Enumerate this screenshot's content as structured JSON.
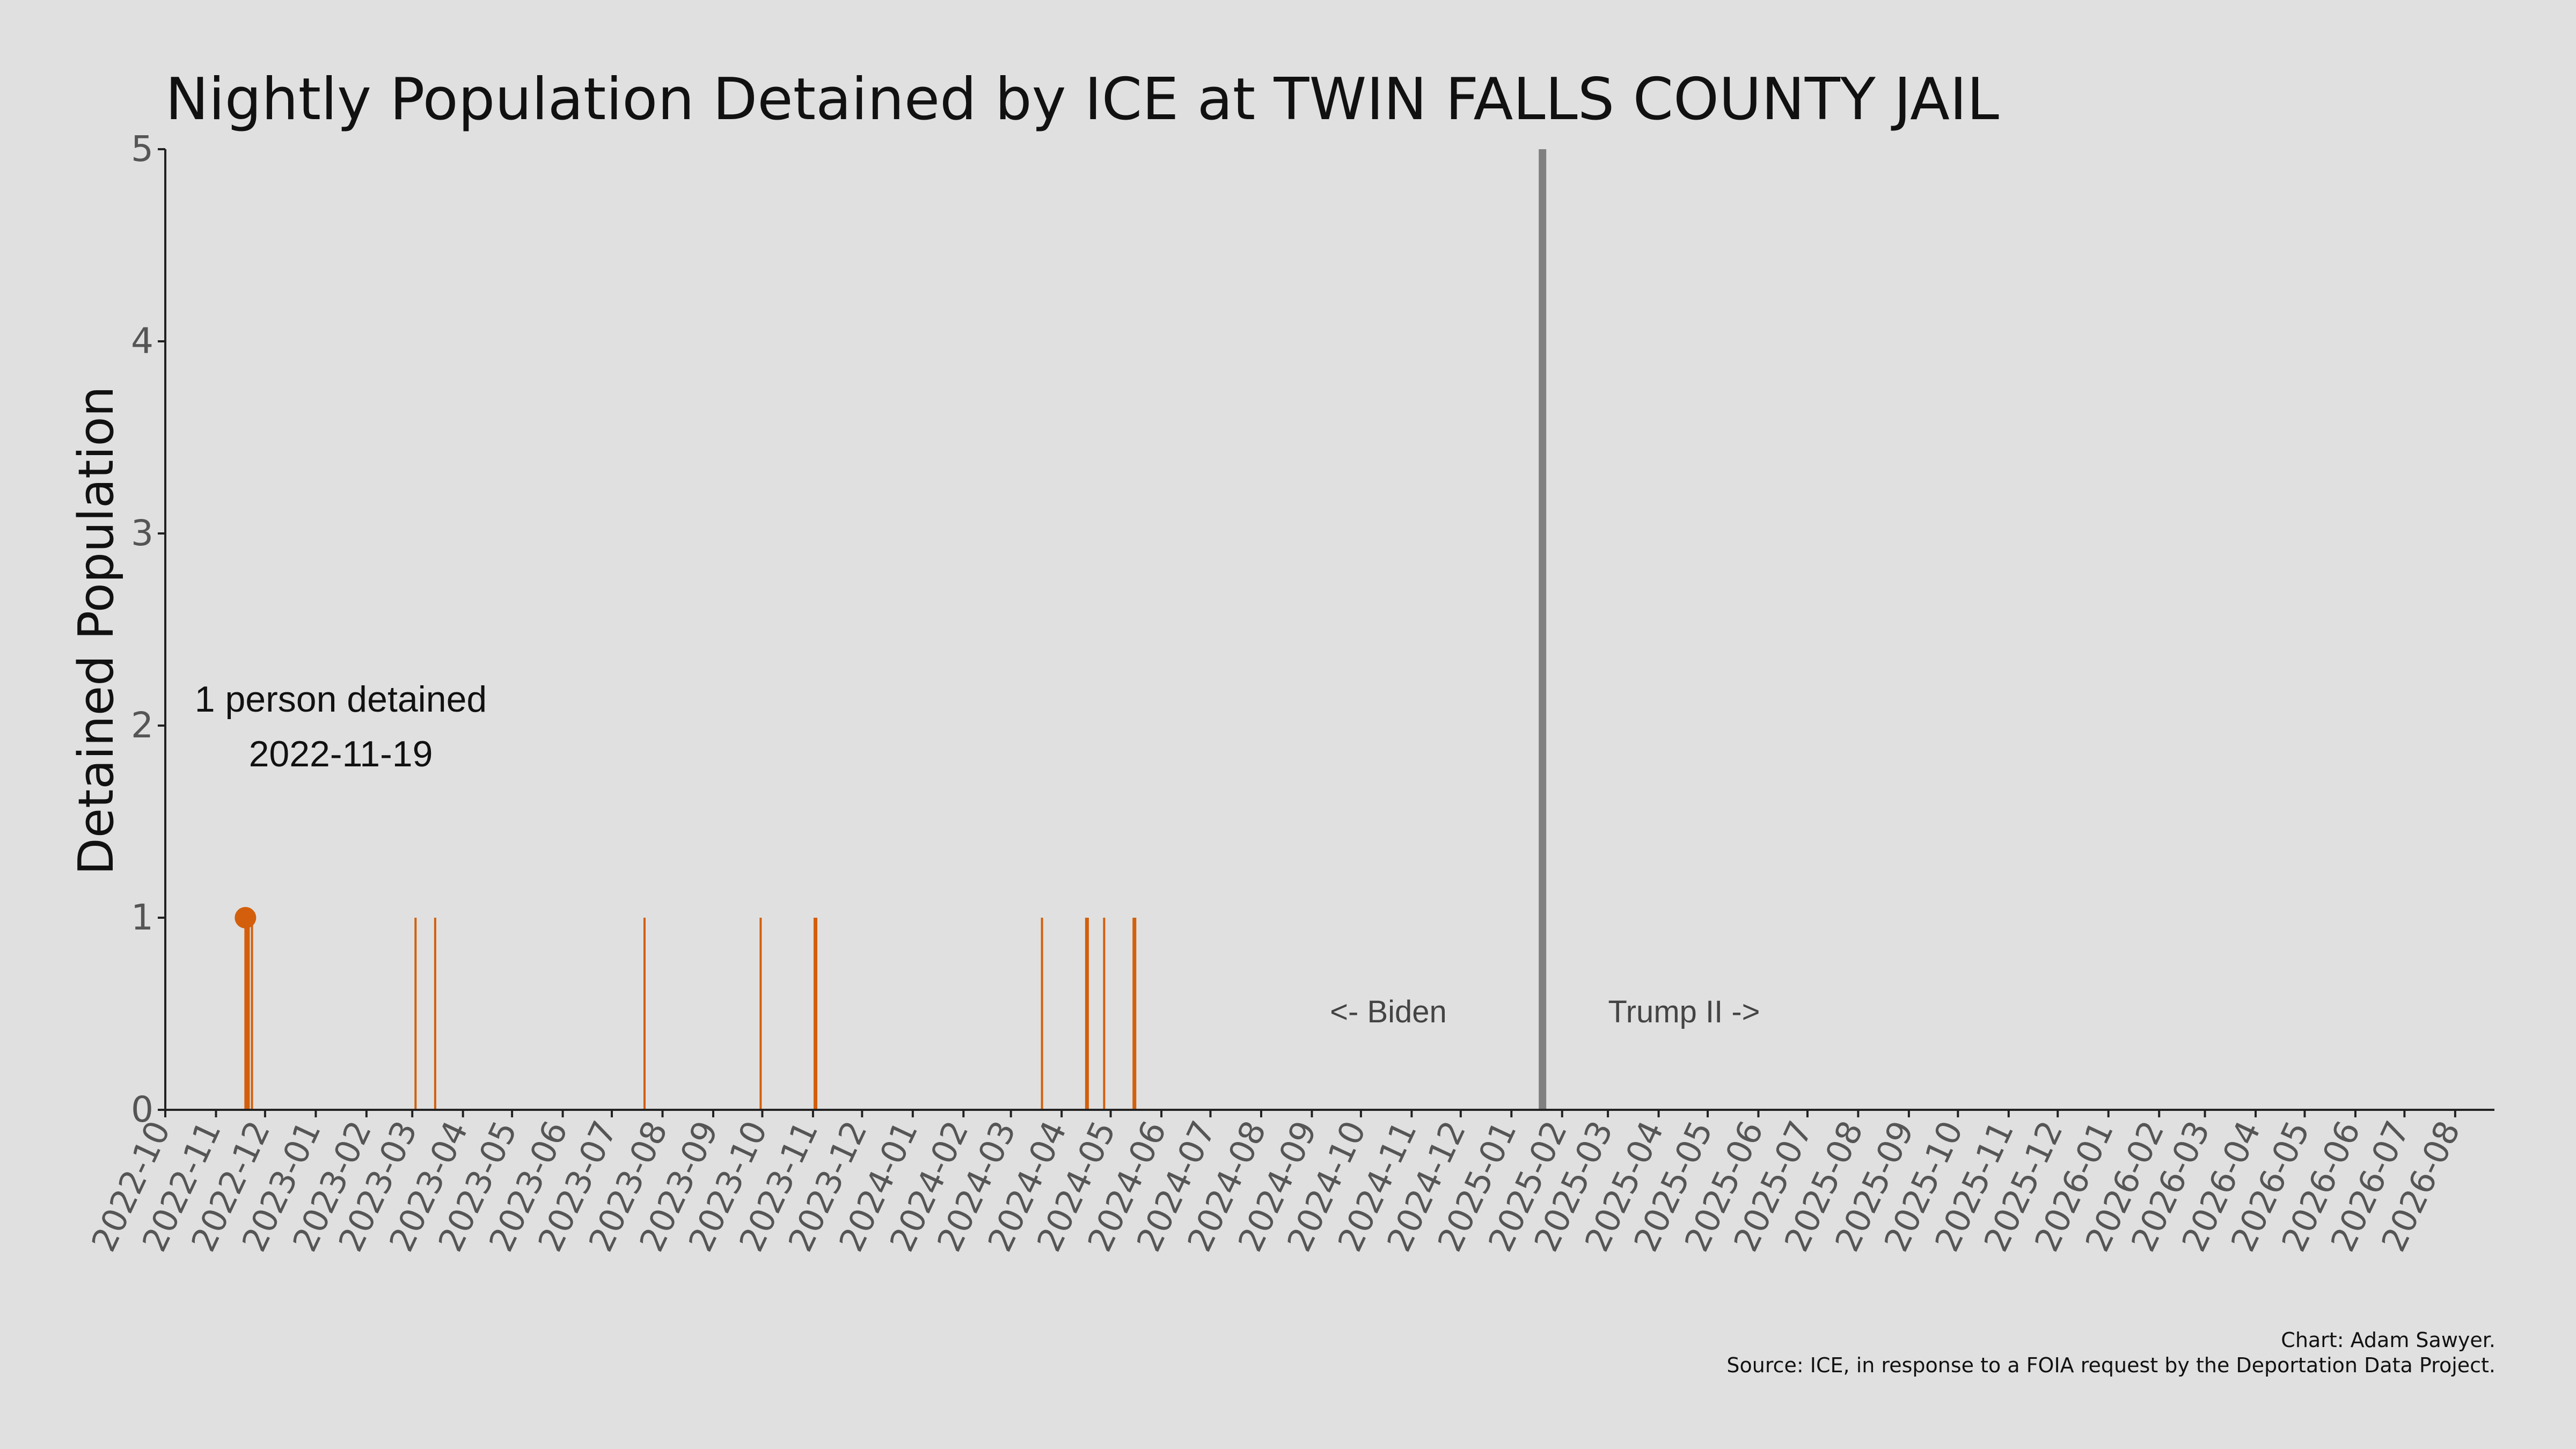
{
  "colors": {
    "background": "#e0e0e0",
    "bar": "#d35f0c",
    "divider": "#808080",
    "axis": "#222222",
    "tick_label": "#555555",
    "text": "#111111",
    "era_label": "#444444"
  },
  "chart_data": {
    "type": "bar",
    "title": "Nightly Population Detained by ICE at TWIN FALLS COUNTY JAIL",
    "xlabel": "",
    "ylabel": "Detained Population",
    "xlim": [
      "2022-10-01",
      "2026-08-25"
    ],
    "ylim": [
      0,
      5
    ],
    "yticks": [
      0,
      1,
      2,
      3,
      4,
      5
    ],
    "xticks": [
      "2022-10",
      "2022-11",
      "2022-12",
      "2023-01",
      "2023-02",
      "2023-03",
      "2023-04",
      "2023-05",
      "2023-06",
      "2023-07",
      "2023-08",
      "2023-09",
      "2023-10",
      "2023-11",
      "2023-12",
      "2024-01",
      "2024-02",
      "2024-03",
      "2024-04",
      "2024-05",
      "2024-06",
      "2024-07",
      "2024-08",
      "2024-09",
      "2024-10",
      "2024-11",
      "2024-12",
      "2025-01",
      "2025-02",
      "2025-03",
      "2025-04",
      "2025-05",
      "2025-06",
      "2025-07",
      "2025-08",
      "2025-09",
      "2025-10",
      "2025-11",
      "2025-12",
      "2026-01",
      "2026-02",
      "2026-03",
      "2026-04",
      "2026-05",
      "2026-06",
      "2026-07",
      "2026-08"
    ],
    "grid": false,
    "legend": "none",
    "series": [
      {
        "points": [
          {
            "date": "2022-11-19",
            "value": 1
          },
          {
            "date": "2022-11-20",
            "value": 1
          },
          {
            "date": "2022-11-21",
            "value": 1
          },
          {
            "date": "2022-11-23",
            "value": 1
          },
          {
            "date": "2023-03-03",
            "value": 1
          },
          {
            "date": "2023-03-15",
            "value": 1
          },
          {
            "date": "2023-07-21",
            "value": 1
          },
          {
            "date": "2023-09-30",
            "value": 1
          },
          {
            "date": "2023-11-02",
            "value": 1
          },
          {
            "date": "2023-11-03",
            "value": 1
          },
          {
            "date": "2024-03-20",
            "value": 1
          },
          {
            "date": "2024-04-16",
            "value": 1
          },
          {
            "date": "2024-04-17",
            "value": 1
          },
          {
            "date": "2024-04-27",
            "value": 1
          },
          {
            "date": "2024-05-15",
            "value": 1
          },
          {
            "date": "2024-05-16",
            "value": 1
          }
        ]
      }
    ],
    "annotations": {
      "peak_line1": "1 person detained",
      "peak_line2": "2022-11-19",
      "peak_date": "2022-11-19",
      "peak_value": 1,
      "divider_date": "2025-01-20",
      "left_era": "<- Biden",
      "right_era": "Trump II ->"
    },
    "credit": "Chart: Adam Sawyer.",
    "source": "Source: ICE, in response to a FOIA request by the Deportation Data Project."
  }
}
